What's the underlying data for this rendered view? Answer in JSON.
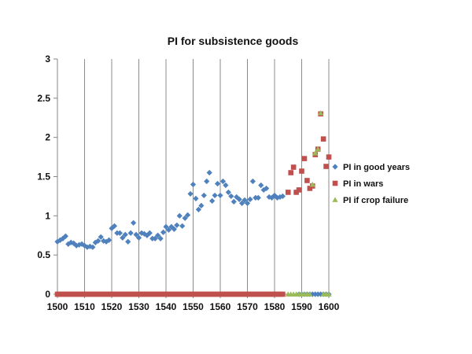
{
  "chart_data": {
    "type": "scatter",
    "title": "PI for subsistence goods",
    "xlabel": "",
    "ylabel": "",
    "xlim": [
      1500,
      1600
    ],
    "ylim": [
      0,
      3
    ],
    "x_ticks": [
      1500,
      1510,
      1520,
      1530,
      1540,
      1550,
      1560,
      1570,
      1580,
      1590,
      1600
    ],
    "y_ticks": [
      "0",
      "0.5",
      "1",
      "1.5",
      "2",
      "2.5",
      "3"
    ],
    "grid": "vertical",
    "legend_position": "right",
    "series": [
      {
        "name": "PI in good years",
        "color": "#4F81BD",
        "marker": "diamond",
        "points": [
          [
            1500,
            0.67
          ],
          [
            1501,
            0.69
          ],
          [
            1502,
            0.71
          ],
          [
            1503,
            0.74
          ],
          [
            1504,
            0.64
          ],
          [
            1505,
            0.66
          ],
          [
            1506,
            0.65
          ],
          [
            1507,
            0.62
          ],
          [
            1508,
            0.63
          ],
          [
            1509,
            0.64
          ],
          [
            1510,
            0.62
          ],
          [
            1511,
            0.6
          ],
          [
            1512,
            0.61
          ],
          [
            1513,
            0.6
          ],
          [
            1514,
            0.66
          ],
          [
            1515,
            0.68
          ],
          [
            1516,
            0.73
          ],
          [
            1517,
            0.68
          ],
          [
            1518,
            0.67
          ],
          [
            1519,
            0.69
          ],
          [
            1520,
            0.84
          ],
          [
            1521,
            0.87
          ],
          [
            1522,
            0.78
          ],
          [
            1523,
            0.78
          ],
          [
            1524,
            0.72
          ],
          [
            1525,
            0.76
          ],
          [
            1526,
            0.67
          ],
          [
            1527,
            0.78
          ],
          [
            1528,
            0.91
          ],
          [
            1529,
            0.76
          ],
          [
            1530,
            0.72
          ],
          [
            1531,
            0.78
          ],
          [
            1532,
            0.77
          ],
          [
            1533,
            0.75
          ],
          [
            1534,
            0.78
          ],
          [
            1535,
            0.71
          ],
          [
            1536,
            0.71
          ],
          [
            1537,
            0.75
          ],
          [
            1538,
            0.71
          ],
          [
            1539,
            0.79
          ],
          [
            1540,
            0.86
          ],
          [
            1541,
            0.82
          ],
          [
            1542,
            0.86
          ],
          [
            1543,
            0.83
          ],
          [
            1544,
            0.88
          ],
          [
            1545,
            1.0
          ],
          [
            1546,
            0.87
          ],
          [
            1547,
            0.97
          ],
          [
            1548,
            1.01
          ],
          [
            1549,
            1.28
          ],
          [
            1550,
            1.4
          ],
          [
            1551,
            1.22
          ],
          [
            1552,
            1.08
          ],
          [
            1553,
            1.13
          ],
          [
            1554,
            1.26
          ],
          [
            1555,
            1.44
          ],
          [
            1556,
            1.55
          ],
          [
            1557,
            1.19
          ],
          [
            1558,
            1.26
          ],
          [
            1559,
            1.41
          ],
          [
            1560,
            1.26
          ],
          [
            1561,
            1.44
          ],
          [
            1562,
            1.39
          ],
          [
            1563,
            1.3
          ],
          [
            1564,
            1.25
          ],
          [
            1565,
            1.18
          ],
          [
            1566,
            1.24
          ],
          [
            1567,
            1.21
          ],
          [
            1568,
            1.16
          ],
          [
            1569,
            1.2
          ],
          [
            1570,
            1.16
          ],
          [
            1571,
            1.21
          ],
          [
            1572,
            1.44
          ],
          [
            1573,
            1.23
          ],
          [
            1574,
            1.23
          ],
          [
            1575,
            1.39
          ],
          [
            1576,
            1.33
          ],
          [
            1577,
            1.35
          ],
          [
            1578,
            1.24
          ],
          [
            1579,
            1.23
          ],
          [
            1580,
            1.26
          ],
          [
            1581,
            1.23
          ],
          [
            1582,
            1.24
          ],
          [
            1583,
            1.25
          ],
          [
            1589,
            0
          ],
          [
            1590,
            0
          ],
          [
            1591,
            0
          ],
          [
            1592,
            0
          ],
          [
            1593,
            0
          ],
          [
            1594,
            0
          ],
          [
            1595,
            0
          ],
          [
            1596,
            0
          ],
          [
            1597,
            0
          ],
          [
            1598,
            0
          ],
          [
            1599,
            0
          ],
          [
            1600,
            0
          ]
        ]
      },
      {
        "name": "PI in wars",
        "color": "#C0504D",
        "marker": "square",
        "points": [
          [
            1500,
            0
          ],
          [
            1501,
            0
          ],
          [
            1502,
            0
          ],
          [
            1503,
            0
          ],
          [
            1504,
            0
          ],
          [
            1505,
            0
          ],
          [
            1506,
            0
          ],
          [
            1507,
            0
          ],
          [
            1508,
            0
          ],
          [
            1509,
            0
          ],
          [
            1510,
            0
          ],
          [
            1511,
            0
          ],
          [
            1512,
            0
          ],
          [
            1513,
            0
          ],
          [
            1514,
            0
          ],
          [
            1515,
            0
          ],
          [
            1516,
            0
          ],
          [
            1517,
            0
          ],
          [
            1518,
            0
          ],
          [
            1519,
            0
          ],
          [
            1520,
            0
          ],
          [
            1521,
            0
          ],
          [
            1522,
            0
          ],
          [
            1523,
            0
          ],
          [
            1524,
            0
          ],
          [
            1525,
            0
          ],
          [
            1526,
            0
          ],
          [
            1527,
            0
          ],
          [
            1528,
            0
          ],
          [
            1529,
            0
          ],
          [
            1530,
            0
          ],
          [
            1531,
            0
          ],
          [
            1532,
            0
          ],
          [
            1533,
            0
          ],
          [
            1534,
            0
          ],
          [
            1535,
            0
          ],
          [
            1536,
            0
          ],
          [
            1537,
            0
          ],
          [
            1538,
            0
          ],
          [
            1539,
            0
          ],
          [
            1540,
            0
          ],
          [
            1541,
            0
          ],
          [
            1542,
            0
          ],
          [
            1543,
            0
          ],
          [
            1544,
            0
          ],
          [
            1545,
            0
          ],
          [
            1546,
            0
          ],
          [
            1547,
            0
          ],
          [
            1548,
            0
          ],
          [
            1549,
            0
          ],
          [
            1550,
            0
          ],
          [
            1551,
            0
          ],
          [
            1552,
            0
          ],
          [
            1553,
            0
          ],
          [
            1554,
            0
          ],
          [
            1555,
            0
          ],
          [
            1556,
            0
          ],
          [
            1557,
            0
          ],
          [
            1558,
            0
          ],
          [
            1559,
            0
          ],
          [
            1560,
            0
          ],
          [
            1561,
            0
          ],
          [
            1562,
            0
          ],
          [
            1563,
            0
          ],
          [
            1564,
            0
          ],
          [
            1565,
            0
          ],
          [
            1566,
            0
          ],
          [
            1567,
            0
          ],
          [
            1568,
            0
          ],
          [
            1569,
            0
          ],
          [
            1570,
            0
          ],
          [
            1571,
            0
          ],
          [
            1572,
            0
          ],
          [
            1573,
            0
          ],
          [
            1574,
            0
          ],
          [
            1575,
            0
          ],
          [
            1576,
            0
          ],
          [
            1577,
            0
          ],
          [
            1578,
            0
          ],
          [
            1579,
            0
          ],
          [
            1580,
            0
          ],
          [
            1581,
            0
          ],
          [
            1582,
            0
          ],
          [
            1583,
            0
          ],
          [
            1585,
            1.3
          ],
          [
            1586,
            1.55
          ],
          [
            1587,
            1.62
          ],
          [
            1588,
            1.3
          ],
          [
            1589,
            1.33
          ],
          [
            1590,
            1.57
          ],
          [
            1591,
            1.73
          ],
          [
            1592,
            1.45
          ],
          [
            1593,
            1.35
          ],
          [
            1594,
            1.38
          ],
          [
            1595,
            1.78
          ],
          [
            1596,
            1.85
          ],
          [
            1597,
            2.3
          ],
          [
            1598,
            1.98
          ],
          [
            1599,
            1.63
          ],
          [
            1600,
            1.75
          ]
        ]
      },
      {
        "name": "PI if crop failure",
        "color": "#9BBB59",
        "marker": "triangle",
        "points": [
          [
            1585,
            0
          ],
          [
            1586,
            0
          ],
          [
            1587,
            0
          ],
          [
            1588,
            0
          ],
          [
            1589,
            0
          ],
          [
            1590,
            0
          ],
          [
            1591,
            0
          ],
          [
            1592,
            0
          ],
          [
            1593,
            0
          ],
          [
            1594,
            1.4
          ],
          [
            1595,
            1.8
          ],
          [
            1596,
            1.85
          ],
          [
            1597,
            2.31
          ],
          [
            1598,
            0
          ],
          [
            1599,
            0
          ],
          [
            1600,
            0
          ]
        ]
      }
    ]
  }
}
